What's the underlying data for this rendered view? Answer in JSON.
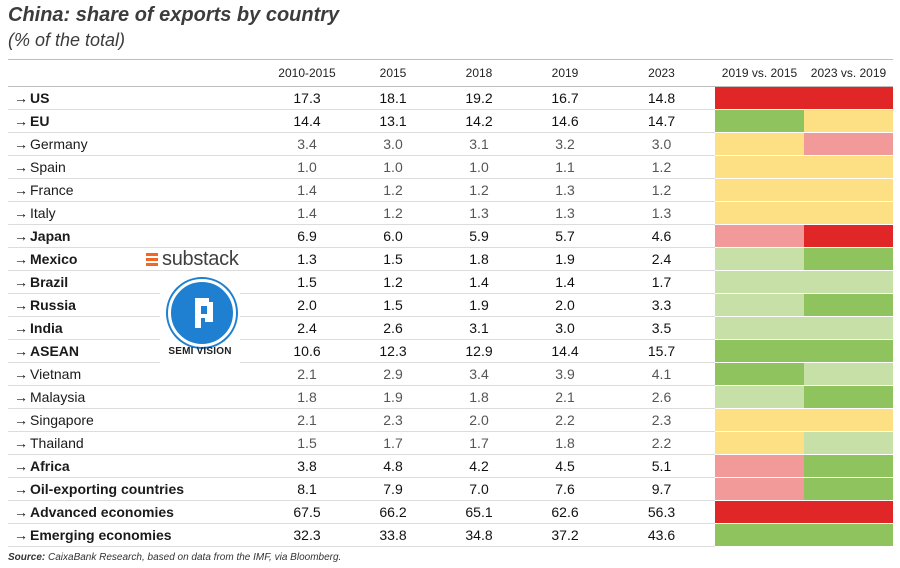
{
  "title": "China: share of exports by country",
  "subtitle": "(% of the total)",
  "source_label": "Source:",
  "source_text": " CaixaBank Research, based on data from the IMF, via Bloomberg.",
  "watermark": {
    "substack": "substack",
    "semi": "SEMI VISION"
  },
  "colors": {
    "red": "#e02626",
    "pink": "#f29a9a",
    "yellow": "#fde084",
    "lightgreen": "#c6e0a8",
    "green": "#8fc35d"
  },
  "chart_data": {
    "type": "table",
    "columns": [
      "",
      "2010-2015",
      "2015",
      "2018",
      "2019",
      "2023",
      "2019 vs. 2015",
      "2023 vs. 2019"
    ],
    "rows": [
      {
        "name": "US",
        "bold": true,
        "values": [
          17.3,
          18.1,
          19.2,
          16.7,
          14.8
        ],
        "cmp": [
          "red",
          "red"
        ]
      },
      {
        "name": "EU",
        "bold": true,
        "values": [
          14.4,
          13.1,
          14.2,
          14.6,
          14.7
        ],
        "cmp": [
          "green",
          "yellow"
        ]
      },
      {
        "name": "Germany",
        "bold": false,
        "values": [
          3.4,
          3.0,
          3.1,
          3.2,
          3.0
        ],
        "cmp": [
          "yellow",
          "pink"
        ]
      },
      {
        "name": "Spain",
        "bold": false,
        "values": [
          1.0,
          1.0,
          1.0,
          1.1,
          1.2
        ],
        "cmp": [
          "yellow",
          "yellow"
        ]
      },
      {
        "name": "France",
        "bold": false,
        "values": [
          1.4,
          1.2,
          1.2,
          1.3,
          1.2
        ],
        "cmp": [
          "yellow",
          "yellow"
        ]
      },
      {
        "name": "Italy",
        "bold": false,
        "values": [
          1.4,
          1.2,
          1.3,
          1.3,
          1.3
        ],
        "cmp": [
          "yellow",
          "yellow"
        ]
      },
      {
        "name": "Japan",
        "bold": true,
        "values": [
          6.9,
          6.0,
          5.9,
          5.7,
          4.6
        ],
        "cmp": [
          "pink",
          "red"
        ]
      },
      {
        "name": "Mexico",
        "bold": true,
        "values": [
          1.3,
          1.5,
          1.8,
          1.9,
          2.4
        ],
        "cmp": [
          "lightgreen",
          "green"
        ]
      },
      {
        "name": "Brazil",
        "bold": true,
        "values": [
          1.5,
          1.2,
          1.4,
          1.4,
          1.7
        ],
        "cmp": [
          "lightgreen",
          "lightgreen"
        ]
      },
      {
        "name": "Russia",
        "bold": true,
        "values": [
          2.0,
          1.5,
          1.9,
          2.0,
          3.3
        ],
        "cmp": [
          "lightgreen",
          "green"
        ]
      },
      {
        "name": "India",
        "bold": true,
        "values": [
          2.4,
          2.6,
          3.1,
          3.0,
          3.5
        ],
        "cmp": [
          "lightgreen",
          "lightgreen"
        ]
      },
      {
        "name": "ASEAN",
        "bold": true,
        "values": [
          10.6,
          12.3,
          12.9,
          14.4,
          15.7
        ],
        "cmp": [
          "green",
          "green"
        ]
      },
      {
        "name": "Vietnam",
        "bold": false,
        "values": [
          2.1,
          2.9,
          3.4,
          3.9,
          4.1
        ],
        "cmp": [
          "green",
          "lightgreen"
        ]
      },
      {
        "name": "Malaysia",
        "bold": false,
        "values": [
          1.8,
          1.9,
          1.8,
          2.1,
          2.6
        ],
        "cmp": [
          "lightgreen",
          "green"
        ]
      },
      {
        "name": "Singapore",
        "bold": false,
        "values": [
          2.1,
          2.3,
          2.0,
          2.2,
          2.3
        ],
        "cmp": [
          "yellow",
          "yellow"
        ]
      },
      {
        "name": "Thailand",
        "bold": false,
        "values": [
          1.5,
          1.7,
          1.7,
          1.8,
          2.2
        ],
        "cmp": [
          "yellow",
          "lightgreen"
        ]
      },
      {
        "name": "Africa",
        "bold": true,
        "values": [
          3.8,
          4.8,
          4.2,
          4.5,
          5.1
        ],
        "cmp": [
          "pink",
          "green"
        ]
      },
      {
        "name": "Oil-exporting countries",
        "bold": true,
        "values": [
          8.1,
          7.9,
          7.0,
          7.6,
          9.7
        ],
        "cmp": [
          "pink",
          "green"
        ]
      },
      {
        "name": "Advanced economies",
        "bold": true,
        "values": [
          67.5,
          66.2,
          65.1,
          62.6,
          56.3
        ],
        "cmp": [
          "red",
          "red"
        ]
      },
      {
        "name": "Emerging economies",
        "bold": true,
        "values": [
          32.3,
          33.8,
          34.8,
          37.2,
          43.6
        ],
        "cmp": [
          "green",
          "green"
        ]
      }
    ]
  }
}
